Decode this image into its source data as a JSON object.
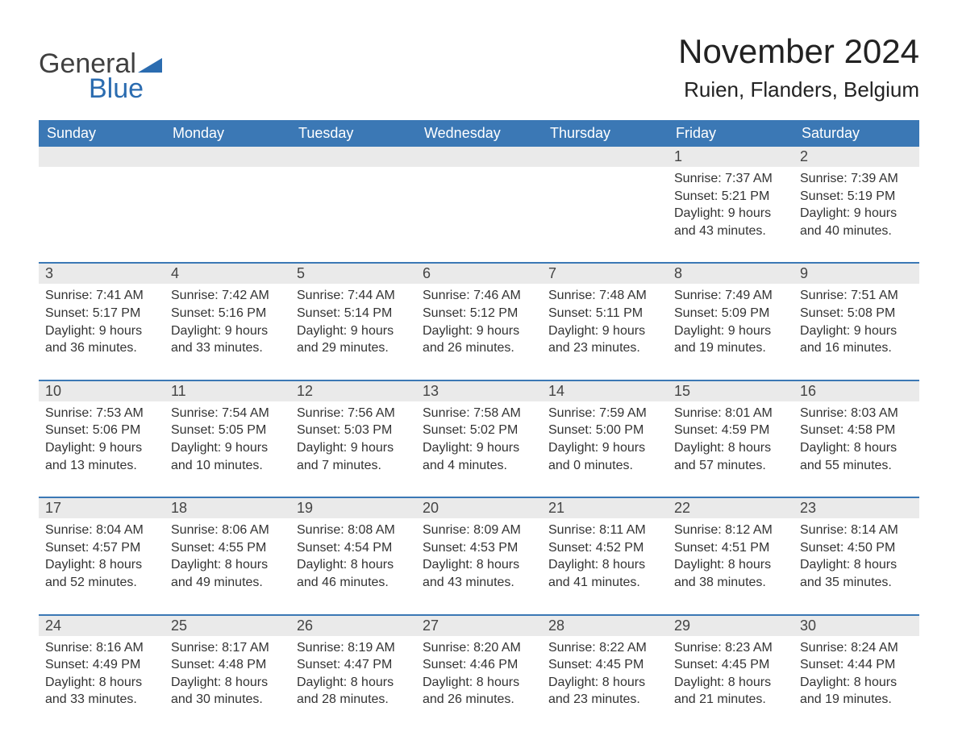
{
  "logo": {
    "general": "General",
    "blue": "Blue",
    "triangle_color": "#2b6cb0"
  },
  "title": "November 2024",
  "location": "Ruien, Flanders, Belgium",
  "colors": {
    "header_bg": "#3b78b5",
    "header_text": "#ffffff",
    "daynum_bg": "#eaeaea",
    "week_border": "#3b78b5",
    "body_text": "#333333",
    "title_text": "#222222",
    "logo_gray": "#404040",
    "logo_blue": "#2b6cb0",
    "background": "#ffffff"
  },
  "typography": {
    "title_fontsize": 42,
    "location_fontsize": 26,
    "dow_fontsize": 18,
    "daynum_fontsize": 18,
    "info_fontsize": 16,
    "logo_fontsize": 34
  },
  "days_of_week": [
    "Sunday",
    "Monday",
    "Tuesday",
    "Wednesday",
    "Thursday",
    "Friday",
    "Saturday"
  ],
  "weeks": [
    [
      null,
      null,
      null,
      null,
      null,
      {
        "day": "1",
        "sunrise": "Sunrise: 7:37 AM",
        "sunset": "Sunset: 5:21 PM",
        "dl1": "Daylight: 9 hours",
        "dl2": "and 43 minutes."
      },
      {
        "day": "2",
        "sunrise": "Sunrise: 7:39 AM",
        "sunset": "Sunset: 5:19 PM",
        "dl1": "Daylight: 9 hours",
        "dl2": "and 40 minutes."
      }
    ],
    [
      {
        "day": "3",
        "sunrise": "Sunrise: 7:41 AM",
        "sunset": "Sunset: 5:17 PM",
        "dl1": "Daylight: 9 hours",
        "dl2": "and 36 minutes."
      },
      {
        "day": "4",
        "sunrise": "Sunrise: 7:42 AM",
        "sunset": "Sunset: 5:16 PM",
        "dl1": "Daylight: 9 hours",
        "dl2": "and 33 minutes."
      },
      {
        "day": "5",
        "sunrise": "Sunrise: 7:44 AM",
        "sunset": "Sunset: 5:14 PM",
        "dl1": "Daylight: 9 hours",
        "dl2": "and 29 minutes."
      },
      {
        "day": "6",
        "sunrise": "Sunrise: 7:46 AM",
        "sunset": "Sunset: 5:12 PM",
        "dl1": "Daylight: 9 hours",
        "dl2": "and 26 minutes."
      },
      {
        "day": "7",
        "sunrise": "Sunrise: 7:48 AM",
        "sunset": "Sunset: 5:11 PM",
        "dl1": "Daylight: 9 hours",
        "dl2": "and 23 minutes."
      },
      {
        "day": "8",
        "sunrise": "Sunrise: 7:49 AM",
        "sunset": "Sunset: 5:09 PM",
        "dl1": "Daylight: 9 hours",
        "dl2": "and 19 minutes."
      },
      {
        "day": "9",
        "sunrise": "Sunrise: 7:51 AM",
        "sunset": "Sunset: 5:08 PM",
        "dl1": "Daylight: 9 hours",
        "dl2": "and 16 minutes."
      }
    ],
    [
      {
        "day": "10",
        "sunrise": "Sunrise: 7:53 AM",
        "sunset": "Sunset: 5:06 PM",
        "dl1": "Daylight: 9 hours",
        "dl2": "and 13 minutes."
      },
      {
        "day": "11",
        "sunrise": "Sunrise: 7:54 AM",
        "sunset": "Sunset: 5:05 PM",
        "dl1": "Daylight: 9 hours",
        "dl2": "and 10 minutes."
      },
      {
        "day": "12",
        "sunrise": "Sunrise: 7:56 AM",
        "sunset": "Sunset: 5:03 PM",
        "dl1": "Daylight: 9 hours",
        "dl2": "and 7 minutes."
      },
      {
        "day": "13",
        "sunrise": "Sunrise: 7:58 AM",
        "sunset": "Sunset: 5:02 PM",
        "dl1": "Daylight: 9 hours",
        "dl2": "and 4 minutes."
      },
      {
        "day": "14",
        "sunrise": "Sunrise: 7:59 AM",
        "sunset": "Sunset: 5:00 PM",
        "dl1": "Daylight: 9 hours",
        "dl2": "and 0 minutes."
      },
      {
        "day": "15",
        "sunrise": "Sunrise: 8:01 AM",
        "sunset": "Sunset: 4:59 PM",
        "dl1": "Daylight: 8 hours",
        "dl2": "and 57 minutes."
      },
      {
        "day": "16",
        "sunrise": "Sunrise: 8:03 AM",
        "sunset": "Sunset: 4:58 PM",
        "dl1": "Daylight: 8 hours",
        "dl2": "and 55 minutes."
      }
    ],
    [
      {
        "day": "17",
        "sunrise": "Sunrise: 8:04 AM",
        "sunset": "Sunset: 4:57 PM",
        "dl1": "Daylight: 8 hours",
        "dl2": "and 52 minutes."
      },
      {
        "day": "18",
        "sunrise": "Sunrise: 8:06 AM",
        "sunset": "Sunset: 4:55 PM",
        "dl1": "Daylight: 8 hours",
        "dl2": "and 49 minutes."
      },
      {
        "day": "19",
        "sunrise": "Sunrise: 8:08 AM",
        "sunset": "Sunset: 4:54 PM",
        "dl1": "Daylight: 8 hours",
        "dl2": "and 46 minutes."
      },
      {
        "day": "20",
        "sunrise": "Sunrise: 8:09 AM",
        "sunset": "Sunset: 4:53 PM",
        "dl1": "Daylight: 8 hours",
        "dl2": "and 43 minutes."
      },
      {
        "day": "21",
        "sunrise": "Sunrise: 8:11 AM",
        "sunset": "Sunset: 4:52 PM",
        "dl1": "Daylight: 8 hours",
        "dl2": "and 41 minutes."
      },
      {
        "day": "22",
        "sunrise": "Sunrise: 8:12 AM",
        "sunset": "Sunset: 4:51 PM",
        "dl1": "Daylight: 8 hours",
        "dl2": "and 38 minutes."
      },
      {
        "day": "23",
        "sunrise": "Sunrise: 8:14 AM",
        "sunset": "Sunset: 4:50 PM",
        "dl1": "Daylight: 8 hours",
        "dl2": "and 35 minutes."
      }
    ],
    [
      {
        "day": "24",
        "sunrise": "Sunrise: 8:16 AM",
        "sunset": "Sunset: 4:49 PM",
        "dl1": "Daylight: 8 hours",
        "dl2": "and 33 minutes."
      },
      {
        "day": "25",
        "sunrise": "Sunrise: 8:17 AM",
        "sunset": "Sunset: 4:48 PM",
        "dl1": "Daylight: 8 hours",
        "dl2": "and 30 minutes."
      },
      {
        "day": "26",
        "sunrise": "Sunrise: 8:19 AM",
        "sunset": "Sunset: 4:47 PM",
        "dl1": "Daylight: 8 hours",
        "dl2": "and 28 minutes."
      },
      {
        "day": "27",
        "sunrise": "Sunrise: 8:20 AM",
        "sunset": "Sunset: 4:46 PM",
        "dl1": "Daylight: 8 hours",
        "dl2": "and 26 minutes."
      },
      {
        "day": "28",
        "sunrise": "Sunrise: 8:22 AM",
        "sunset": "Sunset: 4:45 PM",
        "dl1": "Daylight: 8 hours",
        "dl2": "and 23 minutes."
      },
      {
        "day": "29",
        "sunrise": "Sunrise: 8:23 AM",
        "sunset": "Sunset: 4:45 PM",
        "dl1": "Daylight: 8 hours",
        "dl2": "and 21 minutes."
      },
      {
        "day": "30",
        "sunrise": "Sunrise: 8:24 AM",
        "sunset": "Sunset: 4:44 PM",
        "dl1": "Daylight: 8 hours",
        "dl2": "and 19 minutes."
      }
    ]
  ]
}
